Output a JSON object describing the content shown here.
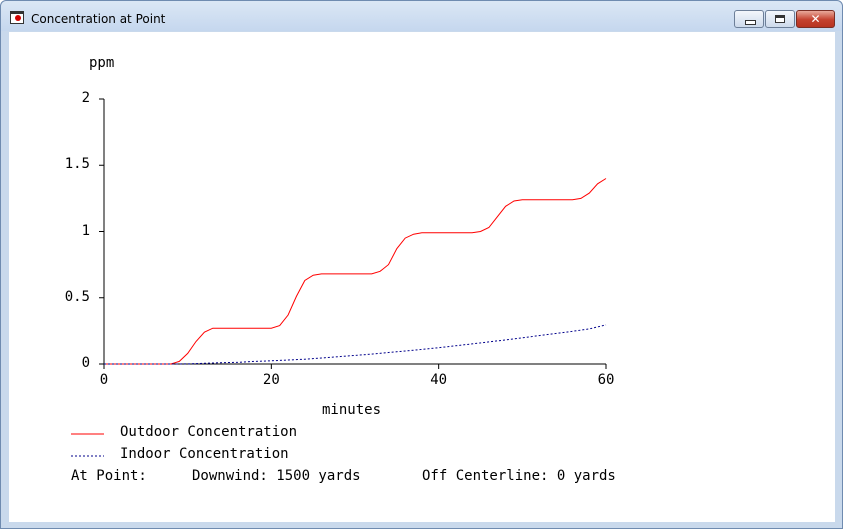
{
  "window": {
    "title": "Concentration at Point"
  },
  "chart_data": {
    "type": "line",
    "ylabel": "ppm",
    "xlabel": "minutes",
    "xlim": [
      0,
      60
    ],
    "ylim": [
      0,
      2
    ],
    "x_ticks": [
      "0",
      "20",
      "40",
      "60"
    ],
    "y_ticks": [
      "0",
      "0.5",
      "1",
      "1.5",
      "2"
    ],
    "grid": false,
    "legend_position": "bottom-left",
    "series": [
      {
        "name": "Outdoor Concentration",
        "color": "#ff0000",
        "style": "solid",
        "x": [
          0,
          8,
          8.5,
          9,
          10,
          11,
          12,
          13,
          14,
          16,
          18,
          20,
          21,
          22,
          23,
          24,
          25,
          26,
          28,
          30,
          32,
          33,
          34,
          35,
          36,
          37,
          38,
          40,
          42,
          44,
          45,
          46,
          47,
          48,
          49,
          50,
          52,
          54,
          56,
          57,
          58,
          59,
          60
        ],
        "y": [
          0,
          0,
          0.01,
          0.02,
          0.08,
          0.17,
          0.24,
          0.27,
          0.27,
          0.27,
          0.27,
          0.27,
          0.29,
          0.37,
          0.51,
          0.63,
          0.67,
          0.68,
          0.68,
          0.68,
          0.68,
          0.7,
          0.75,
          0.87,
          0.95,
          0.98,
          0.99,
          0.99,
          0.99,
          0.99,
          1.0,
          1.03,
          1.11,
          1.19,
          1.23,
          1.24,
          1.24,
          1.24,
          1.24,
          1.25,
          1.29,
          1.36,
          1.4
        ]
      },
      {
        "name": "Indoor Concentration",
        "color": "#00008b",
        "style": "dotted",
        "x": [
          0,
          8,
          10,
          12,
          14,
          16,
          18,
          20,
          22,
          24,
          26,
          28,
          30,
          32,
          34,
          36,
          38,
          40,
          42,
          44,
          46,
          48,
          50,
          52,
          54,
          56,
          58,
          60
        ],
        "y": [
          0,
          0,
          0.001,
          0.005,
          0.01,
          0.013,
          0.02,
          0.024,
          0.03,
          0.036,
          0.045,
          0.055,
          0.065,
          0.075,
          0.087,
          0.098,
          0.11,
          0.123,
          0.137,
          0.152,
          0.167,
          0.182,
          0.198,
          0.214,
          0.23,
          0.247,
          0.265,
          0.295
        ]
      }
    ]
  },
  "legend": {
    "outdoor_label": "Outdoor Concentration",
    "indoor_label": "Indoor Concentration"
  },
  "info": {
    "prefix": "At Point:",
    "downwind": "Downwind: 1500 yards",
    "off_centerline": "Off Centerline: 0 yards"
  }
}
